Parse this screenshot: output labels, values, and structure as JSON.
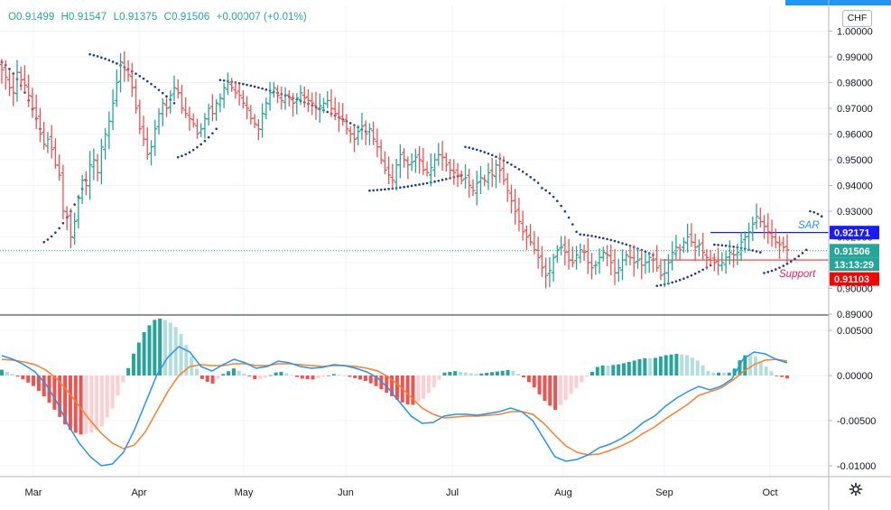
{
  "header": {
    "open": "O0.91499",
    "high": "H0.91547",
    "low": "L0.91375",
    "close": "C0.91506",
    "change": "+0.00007 (+0.01%)",
    "currency_button": "CHF"
  },
  "colors": {
    "up": "#26a69a",
    "down": "#ef5350",
    "sar": "#1e3b8a",
    "macd": "#2196f3",
    "signal": "#ff7f27",
    "hist_up_strong": "#26a69a",
    "hist_up_weak": "#b2dfdb",
    "hist_down_strong": "#ef5350",
    "hist_down_weak": "#ffcdd2",
    "resistance": "#1a1aff",
    "support": "#ff3333"
  },
  "chart_data": [
    {
      "type": "ohlc",
      "ylim": [
        0.89,
        1.01
      ],
      "y_ticks": [
        "1.00000",
        "0.99000",
        "0.98000",
        "0.97000",
        "0.96000",
        "0.95000",
        "0.94000",
        "0.93000",
        "0.92000",
        "0.91000",
        "0.90000",
        "0.89000"
      ],
      "x_ticks": [
        "Mar",
        "Apr",
        "May",
        "Jun",
        "Jul",
        "Aug",
        "Sep",
        "Oct"
      ],
      "annotations": {
        "sar_label": "SAR",
        "support_label": "Support",
        "resistance_level": 0.92171,
        "support_level": 0.91103
      },
      "price_tags": {
        "resistance": "0.92171",
        "last": "0.91506",
        "countdown": "13:13:29",
        "support": "0.91103"
      },
      "close_series": [
        0.985,
        0.982,
        0.978,
        0.976,
        0.984,
        0.981,
        0.979,
        0.975,
        0.97,
        0.966,
        0.96,
        0.956,
        0.958,
        0.954,
        0.948,
        0.944,
        0.93,
        0.928,
        0.92,
        0.926,
        0.935,
        0.942,
        0.94,
        0.948,
        0.95,
        0.945,
        0.955,
        0.96,
        0.965,
        0.972,
        0.98,
        0.988,
        0.985,
        0.983,
        0.978,
        0.97,
        0.962,
        0.958,
        0.952,
        0.955,
        0.962,
        0.968,
        0.972,
        0.97,
        0.975,
        0.978,
        0.976,
        0.97,
        0.968,
        0.966,
        0.964,
        0.96,
        0.962,
        0.966,
        0.97,
        0.968,
        0.972,
        0.974,
        0.978,
        0.98,
        0.978,
        0.976,
        0.975,
        0.972,
        0.97,
        0.966,
        0.964,
        0.962,
        0.968,
        0.972,
        0.976,
        0.978,
        0.975,
        0.973,
        0.975,
        0.974,
        0.972,
        0.974,
        0.976,
        0.974,
        0.973,
        0.972,
        0.97,
        0.971,
        0.972,
        0.973,
        0.97,
        0.968,
        0.966,
        0.965,
        0.962,
        0.96,
        0.958,
        0.961,
        0.963,
        0.96,
        0.962,
        0.958,
        0.955,
        0.95,
        0.946,
        0.944,
        0.942,
        0.948,
        0.952,
        0.95,
        0.948,
        0.949,
        0.951,
        0.95,
        0.946,
        0.945,
        0.947,
        0.95,
        0.952,
        0.951,
        0.948,
        0.946,
        0.945,
        0.944,
        0.942,
        0.943,
        0.94,
        0.938,
        0.941,
        0.943,
        0.942,
        0.945,
        0.944,
        0.948,
        0.946,
        0.942,
        0.938,
        0.934,
        0.93,
        0.926,
        0.922,
        0.92,
        0.918,
        0.915,
        0.912,
        0.908,
        0.905,
        0.907,
        0.912,
        0.915,
        0.916,
        0.914,
        0.911,
        0.91,
        0.913,
        0.915,
        0.914,
        0.91,
        0.908,
        0.909,
        0.912,
        0.914,
        0.913,
        0.91,
        0.906,
        0.908,
        0.911,
        0.913,
        0.912,
        0.91,
        0.911,
        0.909,
        0.91,
        0.912,
        0.911,
        0.908,
        0.905,
        0.906,
        0.91,
        0.914,
        0.916,
        0.915,
        0.918,
        0.92,
        0.918,
        0.916,
        0.917,
        0.914,
        0.912,
        0.911,
        0.91,
        0.909,
        0.91,
        0.912,
        0.914,
        0.913,
        0.914,
        0.918,
        0.92,
        0.922,
        0.925,
        0.928,
        0.926,
        0.924,
        0.922,
        0.92,
        0.918,
        0.917,
        0.916,
        0.915
      ],
      "sar_segments": [
        {
          "from": 0,
          "to": 10,
          "start": 0.988,
          "end": 0.962
        },
        {
          "from": 11,
          "to": 22,
          "start": 0.918,
          "end": 0.942
        },
        {
          "from": 23,
          "to": 45,
          "start": 0.991,
          "end": 0.972
        },
        {
          "from": 46,
          "to": 56,
          "start": 0.951,
          "end": 0.962
        },
        {
          "from": 57,
          "to": 95,
          "start": 0.981,
          "end": 0.961
        },
        {
          "from": 96,
          "to": 120,
          "start": 0.938,
          "end": 0.944
        },
        {
          "from": 121,
          "to": 140,
          "start": 0.955,
          "end": 0.941
        },
        {
          "from": 141,
          "to": 150,
          "start": 0.939,
          "end": 0.922
        },
        {
          "from": 151,
          "to": 170,
          "start": 0.921,
          "end": 0.913
        },
        {
          "from": 171,
          "to": 185,
          "start": 0.901,
          "end": 0.909
        },
        {
          "from": 186,
          "to": 198,
          "start": 0.917,
          "end": 0.914
        },
        {
          "from": 199,
          "to": 210,
          "start": 0.906,
          "end": 0.915
        },
        {
          "from": 211,
          "to": 214,
          "start": 0.93,
          "end": 0.928
        }
      ]
    },
    {
      "type": "macd",
      "ylim": [
        -0.0112,
        0.0066
      ],
      "y_ticks": [
        "0.00500",
        "0.00000",
        "-0.00500",
        "-0.01000"
      ],
      "macd": [
        0.0022,
        0.0018,
        0.0012,
        0.0004,
        -0.001,
        -0.003,
        -0.0055,
        -0.0075,
        -0.009,
        -0.01,
        -0.0098,
        -0.0085,
        -0.006,
        -0.003,
        0.0,
        0.002,
        0.0032,
        0.0026,
        0.001,
        0.0005,
        0.0012,
        0.0018,
        0.0014,
        0.0008,
        0.001,
        0.0016,
        0.0014,
        0.001,
        0.0008,
        0.0009,
        0.0012,
        0.0011,
        0.0008,
        0.0004,
        -0.0003,
        -0.0015,
        -0.003,
        -0.0045,
        -0.0053,
        -0.0052,
        -0.0045,
        -0.0043,
        -0.0043,
        -0.0044,
        -0.0042,
        -0.004,
        -0.0036,
        -0.004,
        -0.005,
        -0.007,
        -0.009,
        -0.0095,
        -0.0093,
        -0.0088,
        -0.008,
        -0.0076,
        -0.007,
        -0.0062,
        -0.0052,
        -0.0045,
        -0.0034,
        -0.0025,
        -0.0018,
        -0.0012,
        -0.0016,
        -0.0012,
        -0.0004,
        0.0018,
        0.0026,
        0.0024,
        0.0018,
        0.0014
      ],
      "signal": [
        0.0018,
        0.0017,
        0.0015,
        0.0012,
        0.0006,
        -0.0004,
        -0.0018,
        -0.0034,
        -0.005,
        -0.0064,
        -0.0075,
        -0.0081,
        -0.0077,
        -0.0062,
        -0.004,
        -0.0018,
        0.0,
        0.001,
        0.0012,
        0.0011,
        0.0011,
        0.0013,
        0.0013,
        0.0011,
        0.0011,
        0.0013,
        0.0013,
        0.0012,
        0.0011,
        0.001,
        0.0011,
        0.0011,
        0.001,
        0.0008,
        0.0005,
        -0.0002,
        -0.0012,
        -0.0024,
        -0.0036,
        -0.0043,
        -0.0047,
        -0.0046,
        -0.0045,
        -0.0045,
        -0.0044,
        -0.0043,
        -0.004,
        -0.004,
        -0.0043,
        -0.0053,
        -0.0066,
        -0.0078,
        -0.0085,
        -0.0088,
        -0.0087,
        -0.0083,
        -0.0078,
        -0.0072,
        -0.0064,
        -0.0057,
        -0.0048,
        -0.004,
        -0.0032,
        -0.0022,
        -0.0018,
        -0.0014,
        -0.0006,
        0.0004,
        0.0012,
        0.0017,
        0.0018,
        0.0016
      ]
    }
  ]
}
